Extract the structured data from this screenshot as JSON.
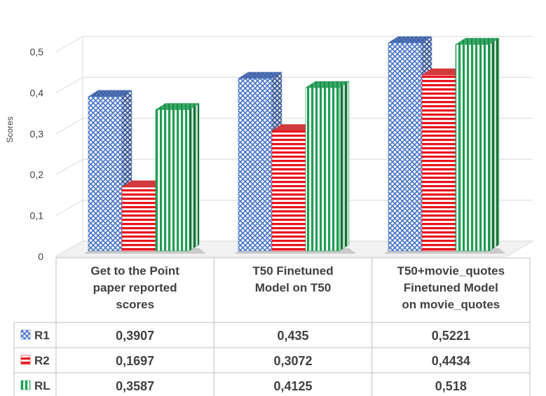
{
  "chart_data": {
    "type": "bar",
    "ylabel": "Scores",
    "ylim": [
      0,
      0.5
    ],
    "yticks": [
      "0",
      "0,1",
      "0,2",
      "0,3",
      "0,4",
      "0,5"
    ],
    "grid": true,
    "categories": [
      [
        "Get to the Point",
        "paper reported",
        "scores"
      ],
      [
        "T50 Finetuned",
        "Model on T50"
      ],
      [
        "T50+movie_quotes",
        "Finetuned Model",
        "on movie_quotes"
      ]
    ],
    "series": [
      {
        "name": "R1",
        "values": [
          0.3907,
          0.435,
          0.5221
        ],
        "labels": [
          "0,3907",
          "0,435",
          "0,5221"
        ],
        "color": "#4472c4"
      },
      {
        "name": "R2",
        "values": [
          0.1697,
          0.3072,
          0.4434
        ],
        "labels": [
          "0,1697",
          "0,3072",
          "0,4434"
        ],
        "color": "#e8141c"
      },
      {
        "name": "RL",
        "values": [
          0.3587,
          0.4125,
          0.518
        ],
        "labels": [
          "0,3587",
          "0,4125",
          "0,518"
        ],
        "color": "#1e9e52"
      }
    ],
    "legend": "data-table"
  }
}
